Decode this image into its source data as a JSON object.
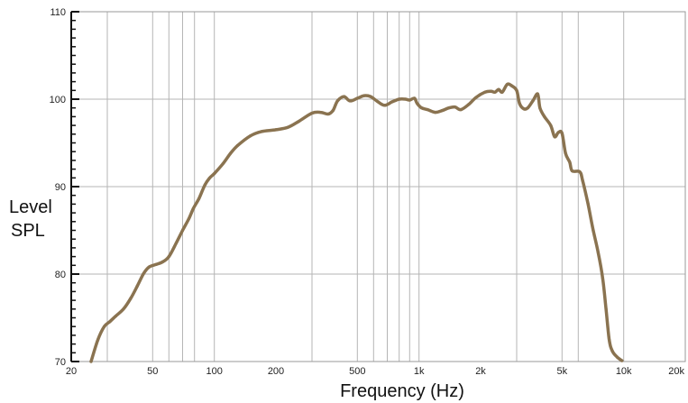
{
  "chart_data": {
    "type": "line",
    "title": "",
    "xlabel": "Frequency (Hz)",
    "ylabel_lines": [
      "Level",
      "SPL"
    ],
    "x_scale": "log",
    "xlim": [
      20,
      20000
    ],
    "ylim": [
      70,
      110
    ],
    "grid": true,
    "x_tick_labels": [
      {
        "value": 20,
        "label": "20"
      },
      {
        "value": 50,
        "label": "50"
      },
      {
        "value": 100,
        "label": "100"
      },
      {
        "value": 200,
        "label": "200"
      },
      {
        "value": 500,
        "label": "500"
      },
      {
        "value": 1000,
        "label": "1k"
      },
      {
        "value": 2000,
        "label": "2k"
      },
      {
        "value": 5000,
        "label": "5k"
      },
      {
        "value": 10000,
        "label": "10k"
      },
      {
        "value": 20000,
        "label": "20k"
      }
    ],
    "x_gridlines": [
      30,
      50,
      60,
      70,
      80,
      100,
      300,
      500,
      600,
      700,
      800,
      900,
      1000,
      3000,
      5000,
      6000,
      10000
    ],
    "y_tick_labels": [
      {
        "value": 70,
        "label": "70"
      },
      {
        "value": 80,
        "label": "80"
      },
      {
        "value": 90,
        "label": "90"
      },
      {
        "value": 100,
        "label": "100"
      },
      {
        "value": 110,
        "label": "110"
      }
    ],
    "y_minor_step": 1,
    "series": [
      {
        "color": "#8a7350",
        "points": [
          [
            25,
            70.0
          ],
          [
            27,
            72.5
          ],
          [
            29,
            74.0
          ],
          [
            31,
            74.6
          ],
          [
            33,
            75.2
          ],
          [
            36,
            76.0
          ],
          [
            39,
            77.2
          ],
          [
            42,
            78.6
          ],
          [
            45,
            80.0
          ],
          [
            48,
            80.8
          ],
          [
            52,
            81.1
          ],
          [
            56,
            81.4
          ],
          [
            60,
            82.0
          ],
          [
            65,
            83.5
          ],
          [
            70,
            85.0
          ],
          [
            75,
            86.3
          ],
          [
            79,
            87.5
          ],
          [
            84,
            88.6
          ],
          [
            90,
            90.2
          ],
          [
            95,
            91.0
          ],
          [
            100,
            91.5
          ],
          [
            110,
            92.6
          ],
          [
            120,
            93.8
          ],
          [
            130,
            94.7
          ],
          [
            150,
            95.8
          ],
          [
            170,
            96.3
          ],
          [
            200,
            96.5
          ],
          [
            230,
            96.8
          ],
          [
            260,
            97.5
          ],
          [
            300,
            98.4
          ],
          [
            330,
            98.5
          ],
          [
            360,
            98.3
          ],
          [
            380,
            98.7
          ],
          [
            400,
            99.8
          ],
          [
            430,
            100.3
          ],
          [
            460,
            99.8
          ],
          [
            500,
            100.1
          ],
          [
            540,
            100.4
          ],
          [
            580,
            100.3
          ],
          [
            630,
            99.7
          ],
          [
            680,
            99.3
          ],
          [
            740,
            99.7
          ],
          [
            800,
            100.0
          ],
          [
            860,
            100.0
          ],
          [
            900,
            99.9
          ],
          [
            950,
            100.1
          ],
          [
            980,
            99.5
          ],
          [
            1030,
            99.0
          ],
          [
            1100,
            98.8
          ],
          [
            1200,
            98.5
          ],
          [
            1300,
            98.7
          ],
          [
            1400,
            99.0
          ],
          [
            1500,
            99.1
          ],
          [
            1600,
            98.8
          ],
          [
            1750,
            99.4
          ],
          [
            1900,
            100.2
          ],
          [
            2100,
            100.8
          ],
          [
            2250,
            100.9
          ],
          [
            2350,
            100.8
          ],
          [
            2450,
            101.1
          ],
          [
            2550,
            100.8
          ],
          [
            2700,
            101.7
          ],
          [
            2850,
            101.5
          ],
          [
            3000,
            101.0
          ],
          [
            3100,
            99.5
          ],
          [
            3250,
            98.9
          ],
          [
            3400,
            99.0
          ],
          [
            3600,
            99.8
          ],
          [
            3800,
            100.6
          ],
          [
            3900,
            99.0
          ],
          [
            4100,
            98.0
          ],
          [
            4400,
            97.0
          ],
          [
            4600,
            95.7
          ],
          [
            4800,
            96.2
          ],
          [
            5000,
            96.1
          ],
          [
            5200,
            93.8
          ],
          [
            5450,
            92.8
          ],
          [
            5600,
            91.8
          ],
          [
            6100,
            91.7
          ],
          [
            6300,
            90.7
          ],
          [
            6700,
            88.0
          ],
          [
            7100,
            85.0
          ],
          [
            7500,
            82.5
          ],
          [
            7900,
            79.5
          ],
          [
            8200,
            76.0
          ],
          [
            8500,
            72.5
          ],
          [
            8800,
            71.2
          ],
          [
            9300,
            70.5
          ],
          [
            9800,
            70.1
          ]
        ]
      }
    ]
  }
}
